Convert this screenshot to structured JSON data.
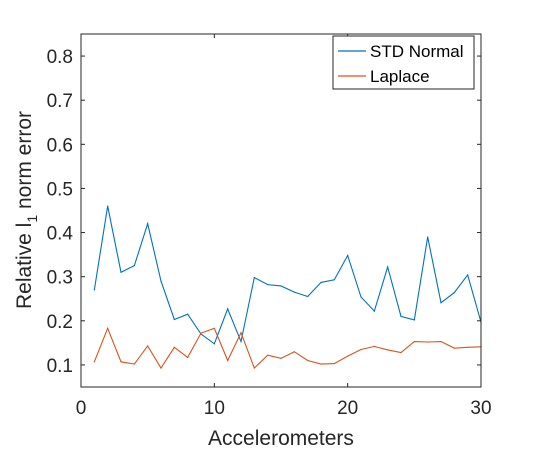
{
  "chart_data": {
    "type": "line",
    "xlabel": "Accelerometers",
    "ylabel": {
      "main": "Relative l",
      "subscript": "1",
      "suffix": " norm error"
    },
    "xlim": [
      0,
      30
    ],
    "ylim": [
      0.05,
      0.85
    ],
    "xticks": [
      0,
      10,
      20,
      30
    ],
    "xtick_labels": [
      "0",
      "10",
      "20",
      "30"
    ],
    "yticks": [
      0.1,
      0.2,
      0.3,
      0.4,
      0.5,
      0.6,
      0.7,
      0.8
    ],
    "ytick_labels": [
      "0.1",
      "0.2",
      "0.3",
      "0.4",
      "0.5",
      "0.6",
      "0.7",
      "0.8"
    ],
    "grid": false,
    "legend_position": "top-right",
    "x": [
      1,
      2,
      3,
      4,
      5,
      6,
      7,
      8,
      9,
      10,
      11,
      12,
      13,
      14,
      15,
      16,
      17,
      18,
      19,
      20,
      21,
      22,
      23,
      24,
      25,
      26,
      27,
      28,
      29,
      30
    ],
    "series": [
      {
        "name": "STD Normal",
        "color": "#0072BD",
        "values": [
          0.27,
          0.46,
          0.31,
          0.325,
          0.42,
          0.29,
          0.203,
          0.215,
          0.17,
          0.148,
          0.227,
          0.153,
          0.298,
          0.282,
          0.279,
          0.265,
          0.255,
          0.287,
          0.293,
          0.348,
          0.254,
          0.222,
          0.322,
          0.21,
          0.202,
          0.39,
          0.241,
          0.264,
          0.304,
          0.197
        ]
      },
      {
        "name": "Laplace",
        "color": "#D95319",
        "values": [
          0.107,
          0.183,
          0.107,
          0.102,
          0.143,
          0.093,
          0.14,
          0.117,
          0.172,
          0.183,
          0.11,
          0.173,
          0.093,
          0.122,
          0.115,
          0.13,
          0.11,
          0.102,
          0.103,
          0.12,
          0.135,
          0.142,
          0.134,
          0.128,
          0.153,
          0.152,
          0.153,
          0.138,
          0.14,
          0.141
        ]
      }
    ]
  }
}
